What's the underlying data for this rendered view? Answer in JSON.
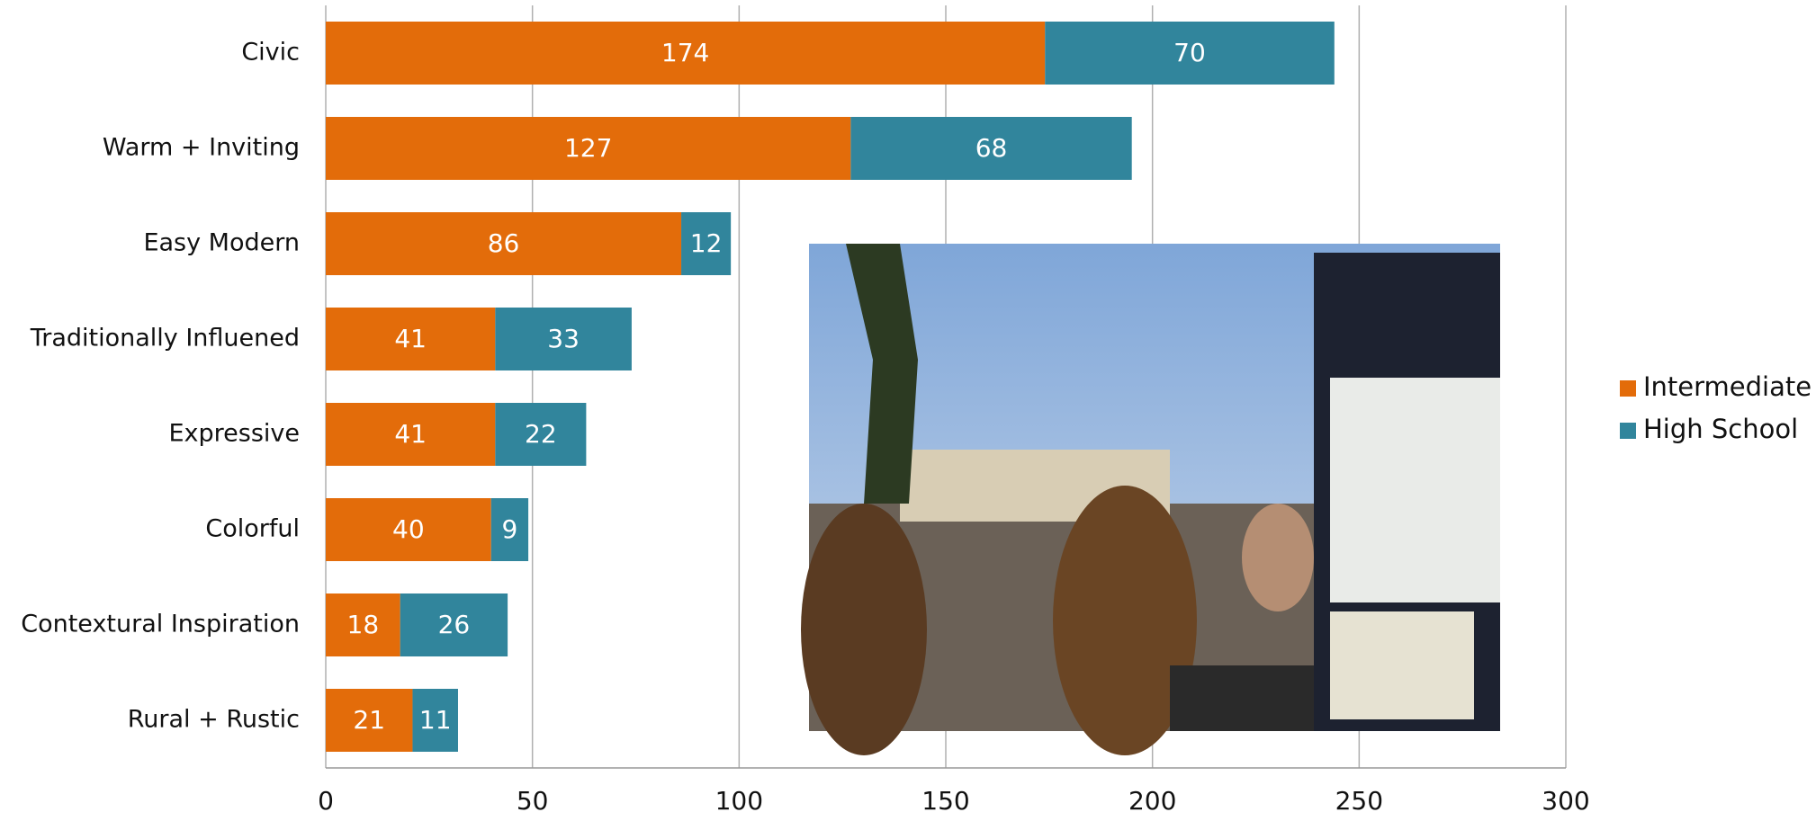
{
  "chart_data": {
    "type": "stacked-bar-horizontal",
    "categories": [
      "Civic",
      "Warm + Inviting",
      "Easy Modern",
      "Traditionally Influened",
      "Expressive",
      "Colorful",
      "Contextural Inspiration",
      "Rural + Rustic"
    ],
    "series": [
      {
        "name": "Intermediate",
        "color": "#e36c0a",
        "values": [
          174,
          127,
          86,
          41,
          41,
          40,
          18,
          21
        ]
      },
      {
        "name": "High School",
        "color": "#31859c",
        "values": [
          70,
          68,
          12,
          33,
          22,
          9,
          26,
          11
        ]
      }
    ],
    "xlim": [
      0,
      300
    ],
    "xticks": [
      0,
      50,
      100,
      150,
      200,
      250,
      300
    ],
    "grid": true,
    "legend": "right"
  }
}
